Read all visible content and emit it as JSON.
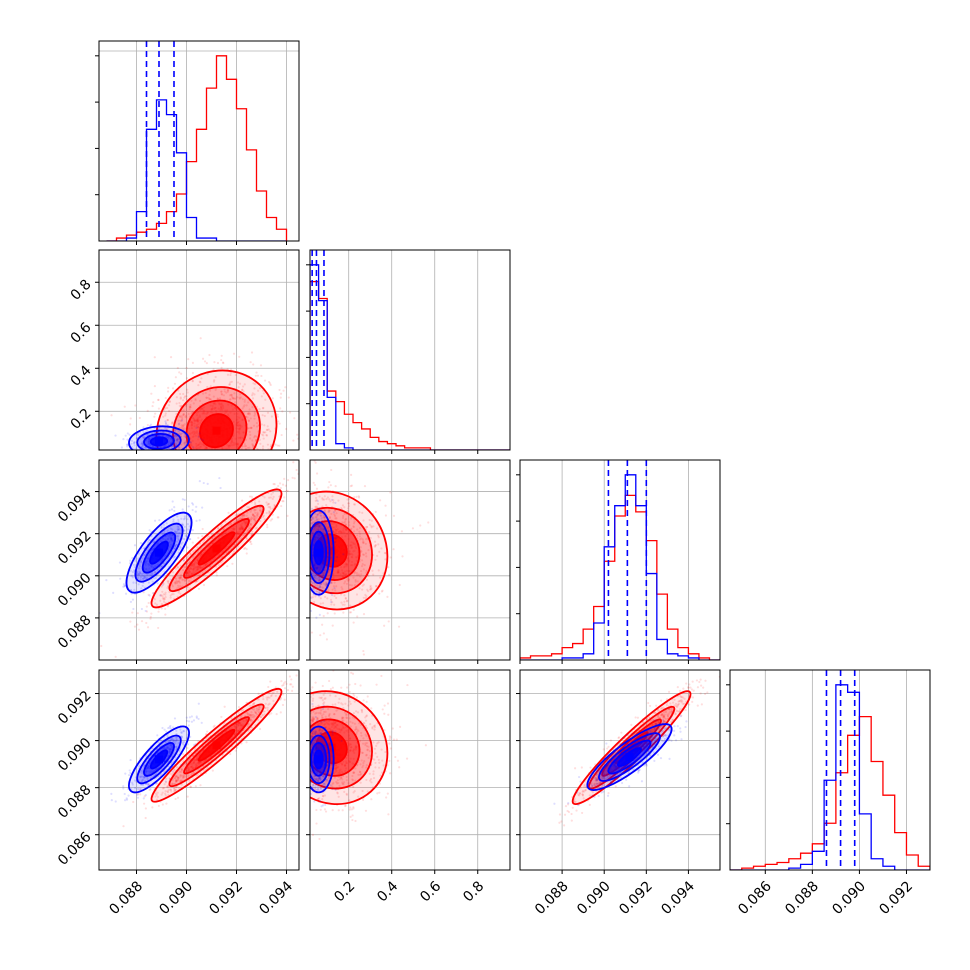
{
  "figure": {
    "series_colors": {
      "blue": "#0000ff",
      "red": "#ff0000"
    },
    "grid": true
  },
  "chart_data": [
    {
      "type": "histogram",
      "panel": "p1-hist",
      "xlim": [
        0.0865,
        0.0945
      ],
      "bins": [
        0.0868,
        0.0872,
        0.0876,
        0.088,
        0.0884,
        0.0888,
        0.0892,
        0.0896,
        0.09,
        0.0904,
        0.0908,
        0.0912,
        0.0916,
        0.092,
        0.0924,
        0.0928,
        0.0932,
        0.0936,
        0.094
      ],
      "series": [
        {
          "name": "blue",
          "color": "#0000ff",
          "counts": [
            0,
            0,
            1,
            10,
            38,
            48,
            43,
            30,
            8,
            1,
            1,
            0,
            0,
            0,
            0,
            0,
            0,
            0
          ],
          "quantiles": [
            0.0884,
            0.0889,
            0.0895
          ]
        },
        {
          "name": "red",
          "color": "#ff0000",
          "counts": [
            0,
            1,
            2,
            3,
            4,
            6,
            10,
            16,
            27,
            38,
            52,
            63,
            55,
            45,
            31,
            17,
            8,
            4
          ]
        }
      ]
    },
    {
      "type": "histogram",
      "panel": "p2-hist",
      "xlim": [
        0.02,
        0.95
      ],
      "bins": [
        0.02,
        0.06,
        0.1,
        0.14,
        0.18,
        0.22,
        0.26,
        0.3,
        0.34,
        0.38,
        0.42,
        0.46,
        0.5,
        0.54,
        0.58,
        0.62,
        0.66,
        0.7,
        0.74,
        0.78,
        0.82,
        0.86,
        0.9,
        0.95
      ],
      "series": [
        {
          "name": "blue",
          "color": "#0000ff",
          "counts": [
            88,
            71,
            25,
            3,
            1,
            0,
            0,
            0,
            0,
            0,
            0,
            0,
            0,
            0,
            0,
            0,
            0,
            0,
            0,
            0,
            0,
            0,
            0
          ],
          "quantiles": [
            0.03,
            0.05,
            0.085
          ]
        },
        {
          "name": "red",
          "color": "#ff0000",
          "counts": [
            80,
            72,
            28,
            23,
            17,
            13,
            10,
            6,
            4,
            3,
            2,
            1,
            1,
            1,
            0,
            0,
            0,
            0,
            0,
            0,
            0,
            0,
            0
          ]
        }
      ]
    },
    {
      "type": "histogram",
      "panel": "p3-hist",
      "xlim": [
        0.086,
        0.0955
      ],
      "bins": [
        0.086,
        0.0865,
        0.087,
        0.0875,
        0.088,
        0.0885,
        0.089,
        0.0895,
        0.09,
        0.0905,
        0.091,
        0.0915,
        0.092,
        0.0925,
        0.093,
        0.0935,
        0.094,
        0.0945,
        0.095,
        0.0955
      ],
      "series": [
        {
          "name": "blue",
          "color": "#0000ff",
          "counts": [
            0,
            0,
            0,
            0,
            1,
            1,
            3,
            18,
            55,
            75,
            90,
            75,
            42,
            10,
            3,
            2,
            1,
            0,
            0
          ],
          "quantiles": [
            0.0902,
            0.0911,
            0.092
          ]
        },
        {
          "name": "red",
          "color": "#ff0000",
          "counts": [
            1,
            2,
            2,
            3,
            6,
            8,
            15,
            26,
            48,
            70,
            80,
            72,
            58,
            32,
            15,
            6,
            3,
            1,
            0
          ]
        }
      ]
    },
    {
      "type": "histogram",
      "panel": "p4-hist",
      "xlim": [
        0.0845,
        0.093
      ],
      "bins": [
        0.0845,
        0.085,
        0.0855,
        0.086,
        0.0865,
        0.087,
        0.0875,
        0.088,
        0.0885,
        0.089,
        0.0895,
        0.09,
        0.0905,
        0.091,
        0.0915,
        0.092,
        0.0925,
        0.093
      ],
      "series": [
        {
          "name": "blue",
          "color": "#0000ff",
          "counts": [
            0,
            0,
            0,
            0,
            0,
            1,
            3,
            10,
            48,
            99,
            95,
            30,
            6,
            2,
            0,
            0,
            0
          ],
          "quantiles": [
            0.0886,
            0.0892,
            0.0898
          ]
        },
        {
          "name": "red",
          "color": "#ff0000",
          "counts": [
            0,
            1,
            2,
            3,
            4,
            6,
            9,
            14,
            25,
            52,
            72,
            82,
            58,
            40,
            20,
            8,
            2
          ]
        }
      ]
    },
    {
      "type": "scatter",
      "panel": "p21",
      "xlim": [
        0.0865,
        0.0945
      ],
      "ylim": [
        0.02,
        0.95
      ],
      "ytick_labels": [
        "0.2",
        "0.4",
        "0.6",
        "0.8"
      ],
      "yticks": [
        0.2,
        0.4,
        0.6,
        0.8
      ],
      "series": [
        {
          "name": "blue",
          "color": "#0000ff",
          "mean": [
            0.0889,
            0.06
          ],
          "sd": [
            0.0006,
            0.035
          ],
          "rho": 0.1,
          "n": 350
        },
        {
          "name": "red",
          "color": "#ff0000",
          "mean": [
            0.0912,
            0.11
          ],
          "sd": [
            0.0012,
            0.14
          ],
          "rho": 0.1,
          "n": 900
        }
      ]
    },
    {
      "type": "scatter",
      "panel": "p31",
      "xlim": [
        0.0865,
        0.0945
      ],
      "ylim": [
        0.086,
        0.0955
      ],
      "ytick_labels": [
        "0.088",
        "0.090",
        "0.092",
        "0.094"
      ],
      "yticks": [
        0.088,
        0.09,
        0.092,
        0.094
      ],
      "series": [
        {
          "name": "blue",
          "color": "#0000ff",
          "mean": [
            0.0889,
            0.0911
          ],
          "sd": [
            0.00065,
            0.00095
          ],
          "rho": 0.75,
          "n": 500
        },
        {
          "name": "red",
          "color": "#ff0000",
          "mean": [
            0.0912,
            0.0913
          ],
          "sd": [
            0.0013,
            0.0014
          ],
          "rho": 0.93,
          "n": 900
        }
      ]
    },
    {
      "type": "scatter",
      "panel": "p32",
      "xlim": [
        0.02,
        0.95
      ],
      "ylim": [
        0.086,
        0.0955
      ],
      "series": [
        {
          "name": "blue",
          "color": "#0000ff",
          "mean": [
            0.06,
            0.0911
          ],
          "sd": [
            0.035,
            0.001
          ],
          "rho": 0.0,
          "n": 350
        },
        {
          "name": "red",
          "color": "#ff0000",
          "mean": [
            0.12,
            0.0912
          ],
          "sd": [
            0.13,
            0.0014
          ],
          "rho": -0.1,
          "n": 900
        }
      ]
    },
    {
      "type": "scatter",
      "panel": "p41",
      "xlim": [
        0.0865,
        0.0945
      ],
      "ylim": [
        0.0845,
        0.093
      ],
      "xtick_labels": [
        "0.088",
        "0.090",
        "0.092",
        "0.094"
      ],
      "xticks": [
        0.088,
        0.09,
        0.092,
        0.094
      ],
      "ytick_labels": [
        "0.086",
        "0.088",
        "0.090",
        "0.092"
      ],
      "yticks": [
        0.086,
        0.088,
        0.09,
        0.092
      ],
      "series": [
        {
          "name": "blue",
          "color": "#0000ff",
          "mean": [
            0.0889,
            0.0892
          ],
          "sd": [
            0.0006,
            0.0007
          ],
          "rho": 0.8,
          "n": 500
        },
        {
          "name": "red",
          "color": "#ff0000",
          "mean": [
            0.0912,
            0.0898
          ],
          "sd": [
            0.0013,
            0.0012
          ],
          "rho": 0.95,
          "n": 900
        }
      ]
    },
    {
      "type": "scatter",
      "panel": "p42",
      "xlim": [
        0.02,
        0.95
      ],
      "ylim": [
        0.0845,
        0.093
      ],
      "xtick_labels": [
        "0.2",
        "0.4",
        "0.6",
        "0.8"
      ],
      "xticks": [
        0.2,
        0.4,
        0.6,
        0.8
      ],
      "series": [
        {
          "name": "blue",
          "color": "#0000ff",
          "mean": [
            0.06,
            0.0892
          ],
          "sd": [
            0.035,
            0.0007
          ],
          "rho": 0.0,
          "n": 350
        },
        {
          "name": "red",
          "color": "#ff0000",
          "mean": [
            0.12,
            0.0897
          ],
          "sd": [
            0.13,
            0.0012
          ],
          "rho": -0.1,
          "n": 900
        }
      ]
    },
    {
      "type": "scatter",
      "panel": "p43",
      "xlim": [
        0.086,
        0.0955
      ],
      "ylim": [
        0.0845,
        0.093
      ],
      "xtick_labels": [
        "0.088",
        "0.090",
        "0.092",
        "0.094"
      ],
      "xticks": [
        0.088,
        0.09,
        0.092,
        0.094
      ],
      "series": [
        {
          "name": "blue",
          "color": "#0000ff",
          "mean": [
            0.0912,
            0.0893
          ],
          "sd": [
            0.001,
            0.0007
          ],
          "rho": 0.85,
          "n": 500
        },
        {
          "name": "red",
          "color": "#ff0000",
          "mean": [
            0.0913,
            0.0897
          ],
          "sd": [
            0.0014,
            0.0012
          ],
          "rho": 0.95,
          "n": 900
        }
      ]
    },
    {
      "type": "axis",
      "panel": "p4-hist",
      "xtick_labels": [
        "0.086",
        "0.088",
        "0.090",
        "0.092"
      ],
      "xticks": [
        0.086,
        0.088,
        0.09,
        0.092
      ]
    }
  ]
}
